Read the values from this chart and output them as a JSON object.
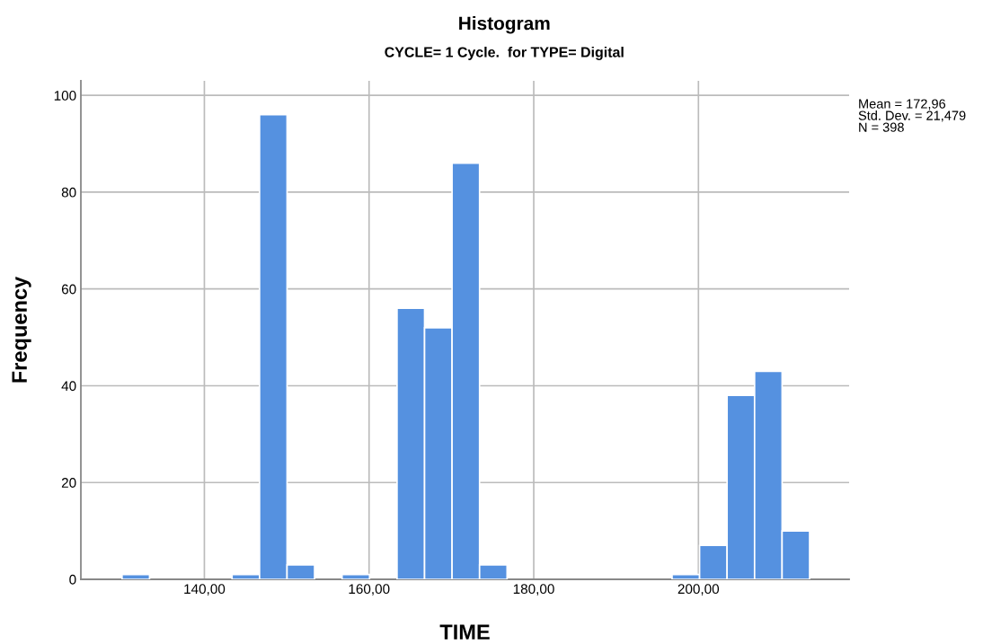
{
  "chart_data": {
    "type": "histogram",
    "title": "Histogram",
    "subtitle": "CYCLE= 1 Cycle.  for TYPE= Digital",
    "xlabel": "TIME",
    "ylabel": "Frequency",
    "bins": [
      130,
      133.34,
      136.68,
      140.02,
      143.36,
      146.7,
      150.04,
      153.38,
      156.72,
      160.06,
      163.4,
      166.74,
      170.08,
      173.42,
      176.76,
      180.1,
      183.44,
      186.78,
      190.12,
      193.46,
      196.8,
      200.14,
      203.48,
      206.82,
      210.16,
      213.5
    ],
    "values": [
      1,
      0,
      0,
      0,
      1,
      96,
      3,
      0,
      1,
      0,
      56,
      52,
      86,
      3,
      0,
      0,
      0,
      0,
      0,
      0,
      1,
      7,
      38,
      43,
      10
    ],
    "color": "#5591e0",
    "xlim": [
      125,
      218.3
    ],
    "ylim": [
      0,
      103
    ],
    "xticks": [
      {
        "value": 140,
        "label": "140,00"
      },
      {
        "value": 160,
        "label": "160,00"
      },
      {
        "value": 180,
        "label": "180,00"
      },
      {
        "value": 200,
        "label": "200,00"
      }
    ],
    "yticks": [
      0,
      20,
      40,
      60,
      80,
      100
    ],
    "grid": true,
    "annotations": [
      "Mean = 172,96\nStd. Dev. = 21,479\nN = 398"
    ]
  }
}
